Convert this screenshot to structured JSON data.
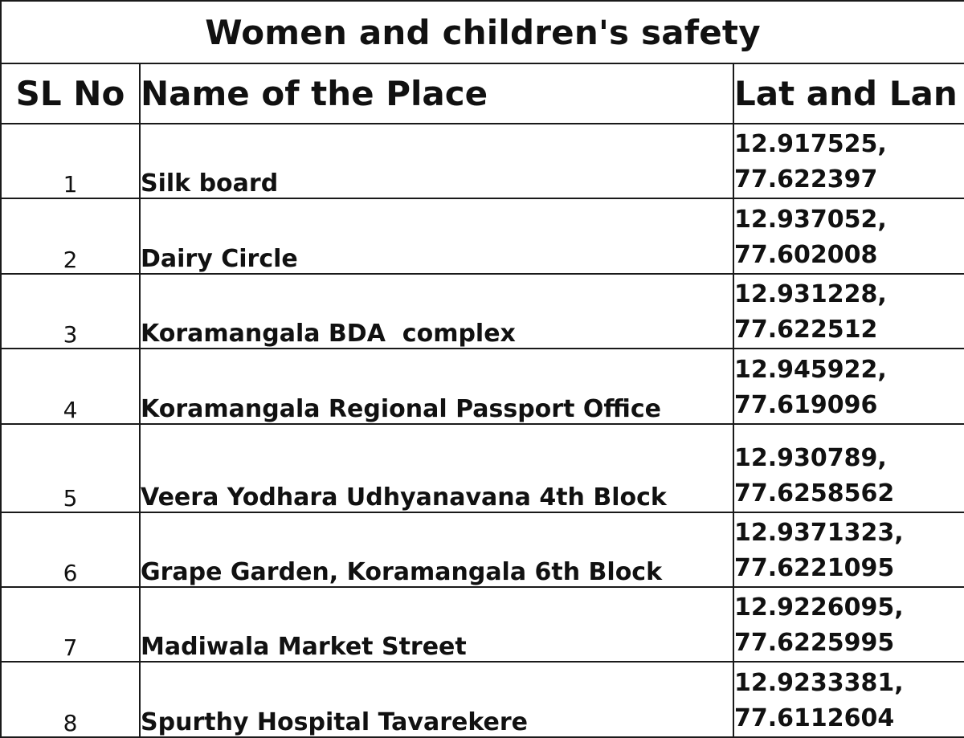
{
  "title": "Women and children's safety",
  "headers": {
    "sl_no": "SL No",
    "place": "Name of the Place",
    "lat_lon": "Lat and Lan"
  },
  "rows": [
    {
      "sl": "1",
      "place": "Silk board",
      "lat": "12.917525,",
      "lon": "77.622397"
    },
    {
      "sl": "2",
      "place": "Dairy Circle",
      "lat": "12.937052,",
      "lon": "77.602008"
    },
    {
      "sl": "3",
      "place": "Koramangala BDA  complex",
      "lat": "12.931228,",
      "lon": "77.622512"
    },
    {
      "sl": "4",
      "place": "Koramangala Regional Passport Office",
      "lat": "12.945922,",
      "lon": "77.619096"
    },
    {
      "sl": "5",
      "place": "Veera Yodhara Udhyanavana 4th Block",
      "lat": "12.930789,",
      "lon": "77.6258562"
    },
    {
      "sl": "6",
      "place": "Grape Garden, Koramangala 6th Block",
      "lat": "12.9371323,",
      "lon": "77.6221095"
    },
    {
      "sl": "7",
      "place": "Madiwala Market Street",
      "lat": "12.9226095,",
      "lon": "77.6225995"
    },
    {
      "sl": "8",
      "place": "Spurthy Hospital Tavarekere",
      "lat": "12.9233381,",
      "lon": "77.6112604"
    }
  ]
}
